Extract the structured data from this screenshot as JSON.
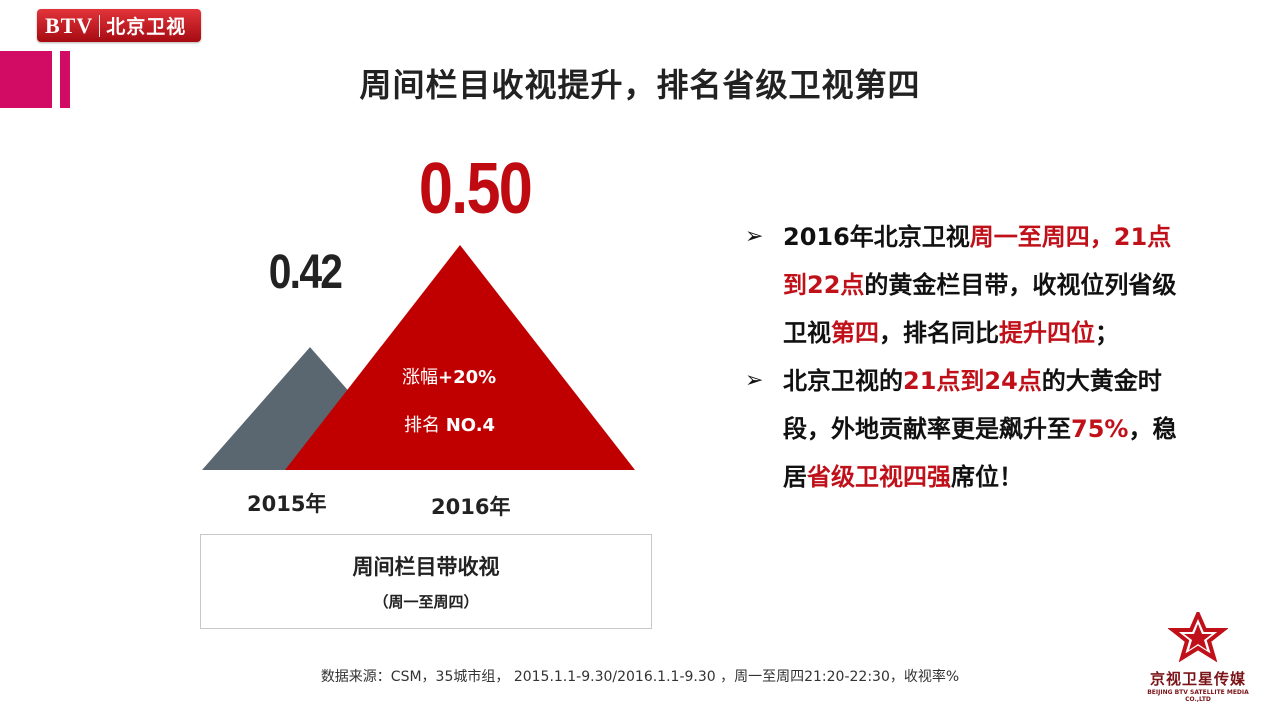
{
  "logo": {
    "latin": "BTV",
    "chinese": "北京卫视"
  },
  "title": "周间栏目收视提升，排名省级卫视第四",
  "chart_data": {
    "type": "bar",
    "categories": [
      "2015年",
      "2016年"
    ],
    "values": [
      0.42,
      0.5
    ],
    "value_labels": [
      "0.42",
      "0.50"
    ],
    "annotations": {
      "gain_label": "涨幅",
      "gain_value": "+20%",
      "rank_label": "排名",
      "rank_value": "NO.4"
    },
    "title": "周间栏目带收视",
    "subtitle": "（周一至周四）",
    "colors": [
      "#5a6670",
      "#c00000"
    ]
  },
  "bullets": [
    [
      {
        "text": "2016年北京卫视",
        "red": false
      },
      {
        "text": "周一至周四，",
        "red": true
      },
      {
        "text": "21点到22点",
        "red": true
      },
      {
        "text": "的黄金栏目带，收视位列省级卫视",
        "red": false
      },
      {
        "text": "第四",
        "red": true
      },
      {
        "text": "，排名同比",
        "red": false
      },
      {
        "text": "提升四位",
        "red": true
      },
      {
        "text": "；",
        "red": false
      }
    ],
    [
      {
        "text": "北京卫视的",
        "red": false
      },
      {
        "text": "21点到24点",
        "red": true
      },
      {
        "text": "的大黄金时段，外地贡献率更是飙升至",
        "red": false
      },
      {
        "text": "75%",
        "red": true
      },
      {
        "text": "，稳居",
        "red": false
      },
      {
        "text": "省级卫视四强",
        "red": true
      },
      {
        "text": "席位！",
        "red": false
      }
    ]
  ],
  "source": "数据来源：CSM，35城市组， 2015.1.1-9.30/2016.1.1-9.30 ，周一至周四21:20-22:30，收视率%",
  "corner_logo": {
    "name": "京视卫星传媒",
    "english": "BEIJING BTV SATELLITE MEDIA CO.,LTD"
  }
}
